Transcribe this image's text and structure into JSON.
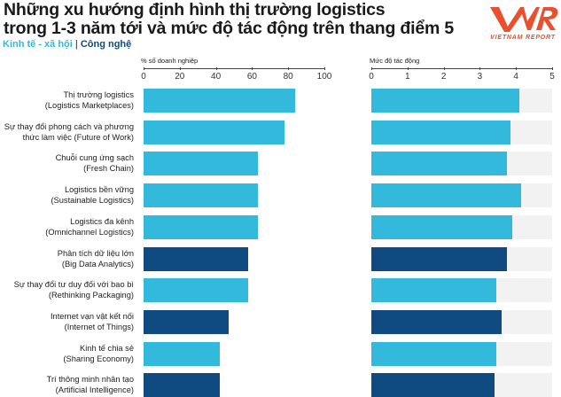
{
  "header": {
    "title_line1": "Những xu hướng định hình thị trường logistics",
    "title_line2": "trong 1-3 năm tới và mức độ tác động trên thang điểm 5",
    "legend_social": "Kinh tế - xã hội",
    "legend_separator": " | ",
    "legend_tech": "Công nghệ",
    "logo_text": "VIETNAM REPORT",
    "logo_mark": "VNR"
  },
  "colors": {
    "social": "#33b9db",
    "tech": "#0f4b80",
    "track": "#f2f2f2",
    "logo": "#e8502f"
  },
  "chart_data": [
    {
      "type": "bar",
      "orientation": "horizontal",
      "title": "% số doanh nghiệp",
      "xlabel": "% số doanh nghiệp",
      "xlim": [
        0,
        100
      ],
      "ticks": [
        "0",
        "20",
        "40",
        "60",
        "80",
        "100"
      ],
      "grid": false,
      "categories": [
        "Thị trường logistics (Logistics Marketplaces)",
        "Sự thay đổi phong cách và phương thức làm việc (Future of Work)",
        "Chuỗi cung ứng sạch (Fresh Chain)",
        "Logistics bền vững (Sustainable Logistics)",
        "Logistics đa kênh (Omnichannel Logistics)",
        "Phân tích dữ liệu lớn (Big Data Analytics)",
        "Sự thay đổi tư duy đối với bao bì (Rethinking Packaging)",
        "Internet vạn vật kết nối (Internet of Things)",
        "Kinh tế chia sẻ (Sharing Economy)",
        "Trí thông minh nhân tạo (Artificial Intelligence)"
      ],
      "values": [
        84,
        78,
        63,
        63,
        63,
        58,
        58,
        47,
        42,
        42
      ],
      "group": [
        "Kinh tế - xã hội",
        "Kinh tế - xã hội",
        "Kinh tế - xã hội",
        "Kinh tế - xã hội",
        "Kinh tế - xã hội",
        "Công nghệ",
        "Kinh tế - xã hội",
        "Công nghệ",
        "Kinh tế - xã hội",
        "Công nghệ"
      ]
    },
    {
      "type": "bar",
      "orientation": "horizontal",
      "title": "Mức độ tác động",
      "xlabel": "Mức độ tác động",
      "xlim": [
        0,
        5
      ],
      "ticks": [
        "0",
        "1",
        "2",
        "3",
        "4",
        "5"
      ],
      "grid": false,
      "categories": [
        "Thị trường logistics (Logistics Marketplaces)",
        "Sự thay đổi phong cách và phương thức làm việc (Future of Work)",
        "Chuỗi cung ứng sạch (Fresh Chain)",
        "Logistics bền vững (Sustainable Logistics)",
        "Logistics đa kênh (Omnichannel Logistics)",
        "Phân tích dữ liệu lớn (Big Data Analytics)",
        "Sự thay đổi tư duy đối với bao bì (Rethinking Packaging)",
        "Internet vạn vật kết nối (Internet of Things)",
        "Kinh tế chia sẻ (Sharing Economy)",
        "Trí thông minh nhân tạo (Artificial Intelligence)"
      ],
      "values": [
        4.1,
        3.85,
        3.75,
        4.15,
        3.9,
        3.75,
        3.45,
        3.6,
        3.45,
        3.4
      ],
      "group": [
        "Kinh tế - xã hội",
        "Kinh tế - xã hội",
        "Kinh tế - xã hội",
        "Kinh tế - xã hội",
        "Kinh tế - xã hội",
        "Công nghệ",
        "Kinh tế - xã hội",
        "Công nghệ",
        "Kinh tế - xã hội",
        "Công nghệ"
      ]
    }
  ],
  "rows": [
    {
      "line1": "Thị trường logistics",
      "line2": "(Logistics Marketplaces)"
    },
    {
      "line1": "Sự thay đổi phong cách và phương",
      "line2": "thức làm việc (Future of Work)"
    },
    {
      "line1": "Chuỗi cung ứng sạch",
      "line2": "(Fresh Chain)"
    },
    {
      "line1": "Logistics bền vững",
      "line2": "(Sustainable Logistics)"
    },
    {
      "line1": "Logistics đa kênh",
      "line2": "(Omnichannel Logistics)"
    },
    {
      "line1": "Phân tích dữ liệu lớn",
      "line2": "(Big Data Analytics)"
    },
    {
      "line1": "Sự thay đổi tư duy đối với bao bì",
      "line2": "(Rethinking Packaging)"
    },
    {
      "line1": "Internet vạn vật kết nối",
      "line2": "(Internet of Things)"
    },
    {
      "line1": "Kinh tế chia sẻ",
      "line2": "(Sharing Economy)"
    },
    {
      "line1": "Trí thông minh nhân tạo",
      "line2": "(Artificial Intelligence)"
    }
  ]
}
